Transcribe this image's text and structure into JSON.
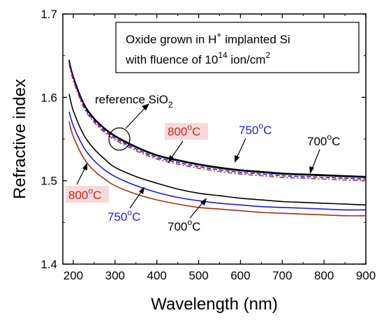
{
  "chart_data": {
    "type": "line",
    "xlabel": "Wavelength (nm)",
    "ylabel": "Refractive index",
    "xlim": [
      175,
      900
    ],
    "ylim": [
      1.4,
      1.7
    ],
    "xticks": [
      200,
      300,
      400,
      500,
      600,
      700,
      800,
      900
    ],
    "yticks": [
      1.4,
      1.5,
      1.6,
      1.7
    ],
    "legend_box": {
      "line1": "Oxide grown in H",
      "line1_sup": "+",
      "line1_tail": " implanted Si",
      "line2": "with fluence of 10",
      "line2_sup": "14",
      "line2_tail": " ion/cm",
      "line2_sup2": "2"
    },
    "annotations": {
      "reference": {
        "text": "reference SiO",
        "sub": "2"
      },
      "t800_upper": {
        "text": "800",
        "deg": "o",
        "unit": "C"
      },
      "t750_upper": {
        "text": "750",
        "deg": "o",
        "unit": "C"
      },
      "t700_upper": {
        "text": "700",
        "deg": "o",
        "unit": "C"
      },
      "t800_lower": {
        "text": "800",
        "deg": "o",
        "unit": "C"
      },
      "t750_lower": {
        "text": "750",
        "deg": "o",
        "unit": "C"
      },
      "t700_lower": {
        "text": "700",
        "deg": "o",
        "unit": "C"
      }
    },
    "colors": {
      "black": "#000000",
      "blue": "#1a1adc",
      "brown": "#a0301a",
      "red": "#c8281e",
      "label_bg": "#f6dada"
    },
    "x": [
      190,
      200,
      225,
      250,
      275,
      300,
      350,
      400,
      450,
      500,
      550,
      600,
      650,
      700,
      750,
      800,
      850,
      900
    ],
    "series": [
      {
        "key": "ref",
        "color": "#000000",
        "dash": "",
        "values": [
          1.645,
          1.625,
          1.593,
          1.575,
          1.563,
          1.554,
          1.541,
          1.531,
          1.525,
          1.52,
          1.516,
          1.513,
          1.511,
          1.509,
          1.508,
          1.507,
          1.506,
          1.505
        ]
      },
      {
        "key": "u700",
        "color": "#000000",
        "dash": "",
        "values": [
          1.644,
          1.624,
          1.592,
          1.574,
          1.562,
          1.553,
          1.54,
          1.53,
          1.524,
          1.519,
          1.515,
          1.512,
          1.51,
          1.508,
          1.507,
          1.506,
          1.505,
          1.504
        ]
      },
      {
        "key": "u750",
        "color": "#1a1adc",
        "dash": "6,3",
        "values": [
          1.642,
          1.622,
          1.59,
          1.572,
          1.56,
          1.551,
          1.538,
          1.528,
          1.522,
          1.517,
          1.513,
          1.51,
          1.508,
          1.506,
          1.505,
          1.504,
          1.503,
          1.502
        ]
      },
      {
        "key": "u800",
        "color": "#c8281e",
        "dash": "7,3,2,3",
        "values": [
          1.64,
          1.62,
          1.588,
          1.57,
          1.558,
          1.549,
          1.536,
          1.526,
          1.52,
          1.515,
          1.511,
          1.508,
          1.506,
          1.504,
          1.503,
          1.502,
          1.501,
          1.5
        ]
      },
      {
        "key": "l700",
        "color": "#000000",
        "dash": "",
        "values": [
          1.604,
          1.584,
          1.555,
          1.538,
          1.526,
          1.516,
          1.505,
          1.497,
          1.49,
          1.485,
          1.482,
          1.479,
          1.477,
          1.475,
          1.474,
          1.473,
          1.472,
          1.471
        ]
      },
      {
        "key": "l750",
        "color": "#1a1adc",
        "dash": "",
        "values": [
          1.583,
          1.566,
          1.54,
          1.524,
          1.513,
          1.505,
          1.494,
          1.486,
          1.48,
          1.476,
          1.473,
          1.471,
          1.469,
          1.468,
          1.467,
          1.466,
          1.465,
          1.465
        ]
      },
      {
        "key": "l800",
        "color": "#a0301a",
        "dash": "",
        "values": [
          1.571,
          1.553,
          1.527,
          1.512,
          1.502,
          1.494,
          1.484,
          1.477,
          1.472,
          1.468,
          1.466,
          1.464,
          1.462,
          1.461,
          1.46,
          1.459,
          1.458,
          1.458
        ]
      }
    ]
  }
}
